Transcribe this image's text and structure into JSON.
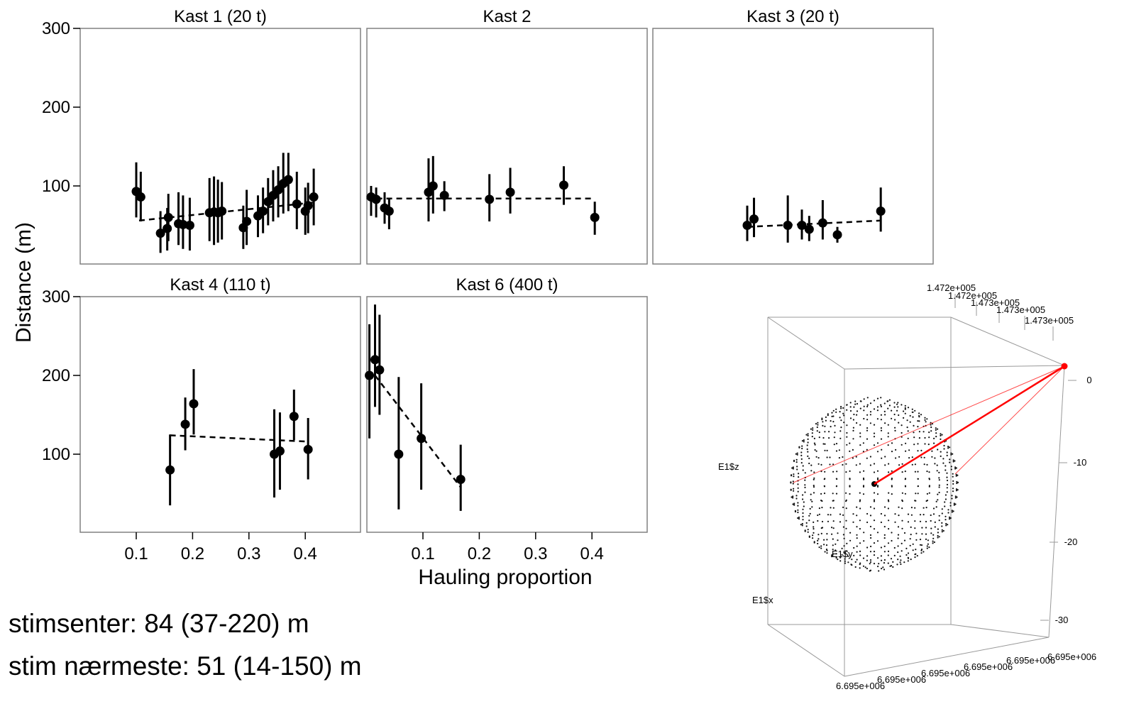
{
  "ylabel": "Distance (m)",
  "xlabel": "Hauling proportion",
  "y_ticks": [
    100,
    200,
    300
  ],
  "x_ticks": [
    0.1,
    0.2,
    0.3,
    0.4
  ],
  "x_tick_labels": [
    "0.1",
    "0.2",
    "0.3",
    "0.4"
  ],
  "y_tick_labels": [
    "100",
    "200",
    "300"
  ],
  "stats": {
    "line1": "stimsenter: 84 (37-220) m",
    "line2": "stim nærmeste: 51 (14-150) m"
  },
  "colors": {
    "points": "#000000",
    "frame": "#808080",
    "vector": "#ff0000"
  },
  "chart_data": [
    {
      "type": "scatter",
      "title": "Kast 1 (20 t)",
      "xlim": [
        0,
        0.5
      ],
      "ylim": [
        0,
        300
      ],
      "points": [
        {
          "x": 0.1,
          "y": 93,
          "lo": 60,
          "hi": 130
        },
        {
          "x": 0.108,
          "y": 86,
          "lo": 55,
          "hi": 118
        },
        {
          "x": 0.143,
          "y": 40,
          "lo": 15,
          "hi": 68
        },
        {
          "x": 0.155,
          "y": 46,
          "lo": 18,
          "hi": 72
        },
        {
          "x": 0.157,
          "y": 60,
          "lo": 30,
          "hi": 90
        },
        {
          "x": 0.175,
          "y": 52,
          "lo": 25,
          "hi": 92
        },
        {
          "x": 0.183,
          "y": 51,
          "lo": 20,
          "hi": 88
        },
        {
          "x": 0.195,
          "y": 50,
          "lo": 18,
          "hi": 85
        },
        {
          "x": 0.23,
          "y": 66,
          "lo": 30,
          "hi": 110
        },
        {
          "x": 0.238,
          "y": 67,
          "lo": 25,
          "hi": 112
        },
        {
          "x": 0.245,
          "y": 66,
          "lo": 28,
          "hi": 108
        },
        {
          "x": 0.252,
          "y": 68,
          "lo": 32,
          "hi": 105
        },
        {
          "x": 0.29,
          "y": 47,
          "lo": 20,
          "hi": 75
        },
        {
          "x": 0.296,
          "y": 55,
          "lo": 25,
          "hi": 95
        },
        {
          "x": 0.316,
          "y": 62,
          "lo": 35,
          "hi": 88
        },
        {
          "x": 0.325,
          "y": 68,
          "lo": 40,
          "hi": 98
        },
        {
          "x": 0.334,
          "y": 80,
          "lo": 50,
          "hi": 110
        },
        {
          "x": 0.343,
          "y": 88,
          "lo": 55,
          "hi": 120
        },
        {
          "x": 0.352,
          "y": 95,
          "lo": 60,
          "hi": 125
        },
        {
          "x": 0.361,
          "y": 103,
          "lo": 65,
          "hi": 142
        },
        {
          "x": 0.37,
          "y": 108,
          "lo": 68,
          "hi": 142
        },
        {
          "x": 0.385,
          "y": 77,
          "lo": 45,
          "hi": 118
        },
        {
          "x": 0.4,
          "y": 68,
          "lo": 38,
          "hi": 98
        },
        {
          "x": 0.405,
          "y": 75,
          "lo": 40,
          "hi": 104
        },
        {
          "x": 0.415,
          "y": 86,
          "lo": 50,
          "hi": 122
        }
      ],
      "trend": [
        [
          0.105,
          56
        ],
        [
          0.105,
          56
        ],
        [
          0.415,
          79
        ]
      ]
    },
    {
      "type": "scatter",
      "title": "Kast 2",
      "xlim": [
        0,
        0.5
      ],
      "ylim": [
        0,
        300
      ],
      "points": [
        {
          "x": 0.008,
          "y": 86,
          "lo": 62,
          "hi": 100
        },
        {
          "x": 0.017,
          "y": 83,
          "lo": 60,
          "hi": 98
        },
        {
          "x": 0.032,
          "y": 72,
          "lo": 52,
          "hi": 92
        },
        {
          "x": 0.04,
          "y": 68,
          "lo": 45,
          "hi": 85
        },
        {
          "x": 0.11,
          "y": 92,
          "lo": 55,
          "hi": 135
        },
        {
          "x": 0.118,
          "y": 100,
          "lo": 65,
          "hi": 138
        },
        {
          "x": 0.138,
          "y": 88,
          "lo": 68,
          "hi": 106
        },
        {
          "x": 0.218,
          "y": 83,
          "lo": 55,
          "hi": 115
        },
        {
          "x": 0.255,
          "y": 92,
          "lo": 65,
          "hi": 123
        },
        {
          "x": 0.35,
          "y": 101,
          "lo": 76,
          "hi": 125
        },
        {
          "x": 0.405,
          "y": 60,
          "lo": 38,
          "hi": 80
        }
      ],
      "trend": [
        [
          0.0,
          84
        ],
        [
          0.405,
          84
        ],
        [
          0.405,
          84
        ]
      ]
    },
    {
      "type": "scatter",
      "title": "Kast 3 (20 t)",
      "xlim": [
        0,
        0.5
      ],
      "ylim": [
        0,
        300
      ],
      "points": [
        {
          "x": 0.168,
          "y": 50,
          "lo": 30,
          "hi": 75
        },
        {
          "x": 0.18,
          "y": 58,
          "lo": 35,
          "hi": 85
        },
        {
          "x": 0.24,
          "y": 50,
          "lo": 28,
          "hi": 88
        },
        {
          "x": 0.265,
          "y": 50,
          "lo": 32,
          "hi": 70
        },
        {
          "x": 0.278,
          "y": 45,
          "lo": 30,
          "hi": 62
        },
        {
          "x": 0.302,
          "y": 53,
          "lo": 32,
          "hi": 82
        },
        {
          "x": 0.328,
          "y": 38,
          "lo": 28,
          "hi": 48
        },
        {
          "x": 0.405,
          "y": 68,
          "lo": 42,
          "hi": 98
        }
      ],
      "trend": [
        [
          0.168,
          48
        ],
        [
          0.405,
          56
        ]
      ]
    },
    {
      "type": "scatter",
      "title": "Kast 4 (110 t)",
      "xlim": [
        0,
        0.5
      ],
      "ylim": [
        0,
        300
      ],
      "points": [
        {
          "x": 0.16,
          "y": 80,
          "lo": 35,
          "hi": 125
        },
        {
          "x": 0.187,
          "y": 138,
          "lo": 105,
          "hi": 172
        },
        {
          "x": 0.202,
          "y": 164,
          "lo": 125,
          "hi": 208
        },
        {
          "x": 0.345,
          "y": 100,
          "lo": 45,
          "hi": 157
        },
        {
          "x": 0.355,
          "y": 104,
          "lo": 55,
          "hi": 153
        },
        {
          "x": 0.38,
          "y": 148,
          "lo": 118,
          "hi": 182
        },
        {
          "x": 0.405,
          "y": 106,
          "lo": 68,
          "hi": 146
        }
      ],
      "trend": [
        [
          0.16,
          124
        ],
        [
          0.405,
          116
        ]
      ]
    },
    {
      "type": "scatter",
      "title": "Kast 6 (400 t)",
      "xlim": [
        0,
        0.5
      ],
      "ylim": [
        0,
        300
      ],
      "points": [
        {
          "x": 0.005,
          "y": 200,
          "lo": 120,
          "hi": 265
        },
        {
          "x": 0.015,
          "y": 220,
          "lo": 160,
          "hi": 290
        },
        {
          "x": 0.023,
          "y": 207,
          "lo": 150,
          "hi": 277
        },
        {
          "x": 0.057,
          "y": 100,
          "lo": 30,
          "hi": 198
        },
        {
          "x": 0.097,
          "y": 120,
          "lo": 55,
          "hi": 190
        },
        {
          "x": 0.167,
          "y": 68,
          "lo": 28,
          "hi": 112
        }
      ],
      "trend": [
        [
          0.015,
          200
        ],
        [
          0.167,
          58
        ]
      ]
    }
  ],
  "plot3d": {
    "labels": {
      "top": [
        "1.472e+005",
        "1.472e+005",
        "1.473e+005",
        "1.473e+005",
        "1.473e+005"
      ],
      "right": [
        "0",
        "-10",
        "-20",
        "-30"
      ],
      "bottom": [
        "6.695e+006",
        "6.695e+006",
        "6.695e+006",
        "6.695e+006",
        "6.695e+006",
        "6.695e+006"
      ],
      "z": "E1$z",
      "x": "E1$x",
      "y": "E1$y"
    }
  }
}
